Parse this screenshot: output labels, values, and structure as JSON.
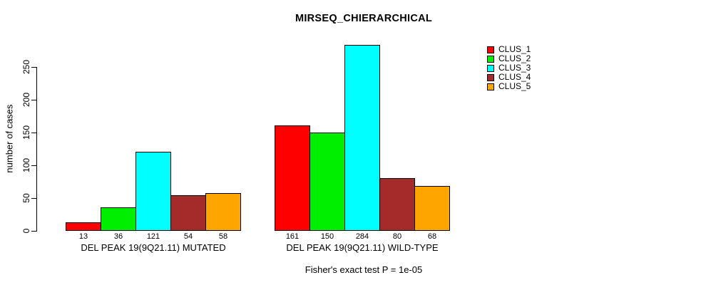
{
  "chart_data": {
    "type": "bar",
    "title": "MIRSEQ_CHIERARCHICAL",
    "ylabel": "number of cases",
    "xlabel": "",
    "ylim": [
      0,
      250
    ],
    "yticks": [
      0,
      50,
      100,
      150,
      200,
      250
    ],
    "grid": false,
    "legend_position": "right",
    "footnote": "Fisher's exact test P = 1e-05",
    "categories": [
      "DEL PEAK 19(9Q21.11) MUTATED",
      "DEL PEAK 19(9Q21.11) WILD-TYPE"
    ],
    "series": [
      {
        "name": "CLUS_1",
        "color": "#ff0000",
        "values": [
          13,
          161
        ]
      },
      {
        "name": "CLUS_2",
        "color": "#00ee00",
        "values": [
          36,
          150
        ]
      },
      {
        "name": "CLUS_3",
        "color": "#00ffff",
        "values": [
          121,
          284
        ]
      },
      {
        "name": "CLUS_4",
        "color": "#a52a2a",
        "values": [
          54,
          80
        ]
      },
      {
        "name": "CLUS_5",
        "color": "#ffa500",
        "values": [
          58,
          68
        ]
      }
    ],
    "bar_value_labels": [
      [
        13,
        36,
        121,
        54,
        58
      ],
      [
        161,
        150,
        284,
        80,
        68
      ]
    ]
  }
}
